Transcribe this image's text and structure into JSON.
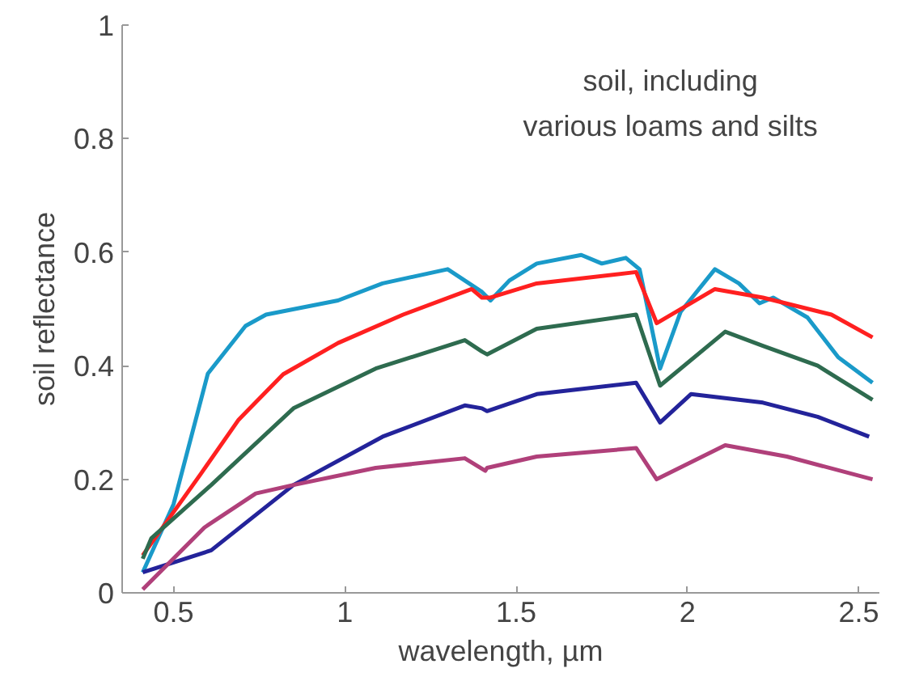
{
  "chart_data": {
    "type": "line",
    "xlabel": "wavelength, µm",
    "ylabel": "soil reflectance",
    "annotations": [
      "soil, including\nvarious loams and silts"
    ],
    "xlim": [
      0.35,
      2.56
    ],
    "ylim": [
      0,
      1
    ],
    "xticks": [
      0.5,
      1,
      1.5,
      2,
      2.5
    ],
    "yticks": [
      0,
      0.2,
      0.4,
      0.6,
      0.8,
      1
    ],
    "grid": false,
    "marker": "none",
    "line_style": "solid",
    "series": [
      {
        "color": "#1a9ac9",
        "x": [
          0.41,
          0.5,
          0.6,
          0.71,
          0.77,
          0.98,
          1.11,
          1.3,
          1.4,
          1.425,
          1.48,
          1.56,
          1.69,
          1.75,
          1.82,
          1.86,
          1.92,
          1.98,
          2.08,
          2.15,
          2.21,
          2.25,
          2.35,
          2.44,
          2.54
        ],
        "values": [
          0.036,
          0.156,
          0.386,
          0.47,
          0.49,
          0.515,
          0.545,
          0.57,
          0.53,
          0.515,
          0.55,
          0.58,
          0.595,
          0.58,
          0.59,
          0.57,
          0.395,
          0.495,
          0.57,
          0.545,
          0.51,
          0.52,
          0.485,
          0.415,
          0.37
        ]
      },
      {
        "color": "#ff2020",
        "x": [
          0.41,
          0.58,
          0.69,
          0.82,
          0.98,
          1.17,
          1.37,
          1.4,
          1.425,
          1.56,
          1.85,
          1.91,
          2.08,
          2.22,
          2.42,
          2.54
        ],
        "values": [
          0.066,
          0.21,
          0.305,
          0.385,
          0.44,
          0.49,
          0.535,
          0.52,
          0.52,
          0.545,
          0.565,
          0.475,
          0.535,
          0.52,
          0.49,
          0.45
        ]
      },
      {
        "color": "#2e6b4f",
        "x": [
          0.41,
          0.435,
          0.61,
          0.85,
          1.09,
          1.35,
          1.4,
          1.415,
          1.56,
          1.85,
          1.92,
          2.11,
          2.22,
          2.38,
          2.54
        ],
        "values": [
          0.06,
          0.096,
          0.19,
          0.325,
          0.395,
          0.445,
          0.425,
          0.42,
          0.465,
          0.49,
          0.365,
          0.46,
          0.435,
          0.4,
          0.34
        ]
      },
      {
        "color": "#23239a",
        "x": [
          0.41,
          0.61,
          0.85,
          1.11,
          1.35,
          1.4,
          1.415,
          1.56,
          1.85,
          1.92,
          2.01,
          2.22,
          2.38,
          2.53
        ],
        "values": [
          0.036,
          0.075,
          0.19,
          0.275,
          0.33,
          0.325,
          0.32,
          0.35,
          0.37,
          0.3,
          0.35,
          0.335,
          0.31,
          0.275
        ]
      },
      {
        "color": "#b0407a",
        "x": [
          0.41,
          0.59,
          0.74,
          0.85,
          1.09,
          1.35,
          1.41,
          1.415,
          1.56,
          1.85,
          1.91,
          2.11,
          2.29,
          2.54
        ],
        "values": [
          0.006,
          0.115,
          0.175,
          0.19,
          0.22,
          0.237,
          0.215,
          0.22,
          0.24,
          0.255,
          0.2,
          0.26,
          0.24,
          0.2
        ]
      }
    ]
  }
}
